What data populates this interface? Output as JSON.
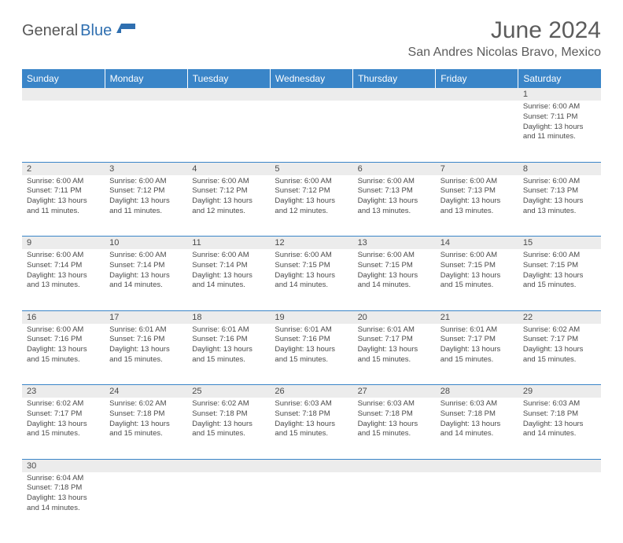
{
  "brand": {
    "part1": "General",
    "part2": "Blue"
  },
  "title": "June 2024",
  "location": "San Andres Nicolas Bravo, Mexico",
  "colors": {
    "header_bg": "#3a85c8",
    "header_text": "#ffffff",
    "daynum_bg": "#ececec",
    "text": "#4a4a4a",
    "rule": "#3a85c8"
  },
  "days_of_week": [
    "Sunday",
    "Monday",
    "Tuesday",
    "Wednesday",
    "Thursday",
    "Friday",
    "Saturday"
  ],
  "weeks": [
    [
      {
        "n": "",
        "sr": "",
        "ss": "",
        "dl": ""
      },
      {
        "n": "",
        "sr": "",
        "ss": "",
        "dl": ""
      },
      {
        "n": "",
        "sr": "",
        "ss": "",
        "dl": ""
      },
      {
        "n": "",
        "sr": "",
        "ss": "",
        "dl": ""
      },
      {
        "n": "",
        "sr": "",
        "ss": "",
        "dl": ""
      },
      {
        "n": "",
        "sr": "",
        "ss": "",
        "dl": ""
      },
      {
        "n": "1",
        "sr": "Sunrise: 6:00 AM",
        "ss": "Sunset: 7:11 PM",
        "dl": "Daylight: 13 hours and 11 minutes."
      }
    ],
    [
      {
        "n": "2",
        "sr": "Sunrise: 6:00 AM",
        "ss": "Sunset: 7:11 PM",
        "dl": "Daylight: 13 hours and 11 minutes."
      },
      {
        "n": "3",
        "sr": "Sunrise: 6:00 AM",
        "ss": "Sunset: 7:12 PM",
        "dl": "Daylight: 13 hours and 11 minutes."
      },
      {
        "n": "4",
        "sr": "Sunrise: 6:00 AM",
        "ss": "Sunset: 7:12 PM",
        "dl": "Daylight: 13 hours and 12 minutes."
      },
      {
        "n": "5",
        "sr": "Sunrise: 6:00 AM",
        "ss": "Sunset: 7:12 PM",
        "dl": "Daylight: 13 hours and 12 minutes."
      },
      {
        "n": "6",
        "sr": "Sunrise: 6:00 AM",
        "ss": "Sunset: 7:13 PM",
        "dl": "Daylight: 13 hours and 13 minutes."
      },
      {
        "n": "7",
        "sr": "Sunrise: 6:00 AM",
        "ss": "Sunset: 7:13 PM",
        "dl": "Daylight: 13 hours and 13 minutes."
      },
      {
        "n": "8",
        "sr": "Sunrise: 6:00 AM",
        "ss": "Sunset: 7:13 PM",
        "dl": "Daylight: 13 hours and 13 minutes."
      }
    ],
    [
      {
        "n": "9",
        "sr": "Sunrise: 6:00 AM",
        "ss": "Sunset: 7:14 PM",
        "dl": "Daylight: 13 hours and 13 minutes."
      },
      {
        "n": "10",
        "sr": "Sunrise: 6:00 AM",
        "ss": "Sunset: 7:14 PM",
        "dl": "Daylight: 13 hours and 14 minutes."
      },
      {
        "n": "11",
        "sr": "Sunrise: 6:00 AM",
        "ss": "Sunset: 7:14 PM",
        "dl": "Daylight: 13 hours and 14 minutes."
      },
      {
        "n": "12",
        "sr": "Sunrise: 6:00 AM",
        "ss": "Sunset: 7:15 PM",
        "dl": "Daylight: 13 hours and 14 minutes."
      },
      {
        "n": "13",
        "sr": "Sunrise: 6:00 AM",
        "ss": "Sunset: 7:15 PM",
        "dl": "Daylight: 13 hours and 14 minutes."
      },
      {
        "n": "14",
        "sr": "Sunrise: 6:00 AM",
        "ss": "Sunset: 7:15 PM",
        "dl": "Daylight: 13 hours and 15 minutes."
      },
      {
        "n": "15",
        "sr": "Sunrise: 6:00 AM",
        "ss": "Sunset: 7:15 PM",
        "dl": "Daylight: 13 hours and 15 minutes."
      }
    ],
    [
      {
        "n": "16",
        "sr": "Sunrise: 6:00 AM",
        "ss": "Sunset: 7:16 PM",
        "dl": "Daylight: 13 hours and 15 minutes."
      },
      {
        "n": "17",
        "sr": "Sunrise: 6:01 AM",
        "ss": "Sunset: 7:16 PM",
        "dl": "Daylight: 13 hours and 15 minutes."
      },
      {
        "n": "18",
        "sr": "Sunrise: 6:01 AM",
        "ss": "Sunset: 7:16 PM",
        "dl": "Daylight: 13 hours and 15 minutes."
      },
      {
        "n": "19",
        "sr": "Sunrise: 6:01 AM",
        "ss": "Sunset: 7:16 PM",
        "dl": "Daylight: 13 hours and 15 minutes."
      },
      {
        "n": "20",
        "sr": "Sunrise: 6:01 AM",
        "ss": "Sunset: 7:17 PM",
        "dl": "Daylight: 13 hours and 15 minutes."
      },
      {
        "n": "21",
        "sr": "Sunrise: 6:01 AM",
        "ss": "Sunset: 7:17 PM",
        "dl": "Daylight: 13 hours and 15 minutes."
      },
      {
        "n": "22",
        "sr": "Sunrise: 6:02 AM",
        "ss": "Sunset: 7:17 PM",
        "dl": "Daylight: 13 hours and 15 minutes."
      }
    ],
    [
      {
        "n": "23",
        "sr": "Sunrise: 6:02 AM",
        "ss": "Sunset: 7:17 PM",
        "dl": "Daylight: 13 hours and 15 minutes."
      },
      {
        "n": "24",
        "sr": "Sunrise: 6:02 AM",
        "ss": "Sunset: 7:18 PM",
        "dl": "Daylight: 13 hours and 15 minutes."
      },
      {
        "n": "25",
        "sr": "Sunrise: 6:02 AM",
        "ss": "Sunset: 7:18 PM",
        "dl": "Daylight: 13 hours and 15 minutes."
      },
      {
        "n": "26",
        "sr": "Sunrise: 6:03 AM",
        "ss": "Sunset: 7:18 PM",
        "dl": "Daylight: 13 hours and 15 minutes."
      },
      {
        "n": "27",
        "sr": "Sunrise: 6:03 AM",
        "ss": "Sunset: 7:18 PM",
        "dl": "Daylight: 13 hours and 15 minutes."
      },
      {
        "n": "28",
        "sr": "Sunrise: 6:03 AM",
        "ss": "Sunset: 7:18 PM",
        "dl": "Daylight: 13 hours and 14 minutes."
      },
      {
        "n": "29",
        "sr": "Sunrise: 6:03 AM",
        "ss": "Sunset: 7:18 PM",
        "dl": "Daylight: 13 hours and 14 minutes."
      }
    ],
    [
      {
        "n": "30",
        "sr": "Sunrise: 6:04 AM",
        "ss": "Sunset: 7:18 PM",
        "dl": "Daylight: 13 hours and 14 minutes."
      },
      {
        "n": "",
        "sr": "",
        "ss": "",
        "dl": ""
      },
      {
        "n": "",
        "sr": "",
        "ss": "",
        "dl": ""
      },
      {
        "n": "",
        "sr": "",
        "ss": "",
        "dl": ""
      },
      {
        "n": "",
        "sr": "",
        "ss": "",
        "dl": ""
      },
      {
        "n": "",
        "sr": "",
        "ss": "",
        "dl": ""
      },
      {
        "n": "",
        "sr": "",
        "ss": "",
        "dl": ""
      }
    ]
  ]
}
